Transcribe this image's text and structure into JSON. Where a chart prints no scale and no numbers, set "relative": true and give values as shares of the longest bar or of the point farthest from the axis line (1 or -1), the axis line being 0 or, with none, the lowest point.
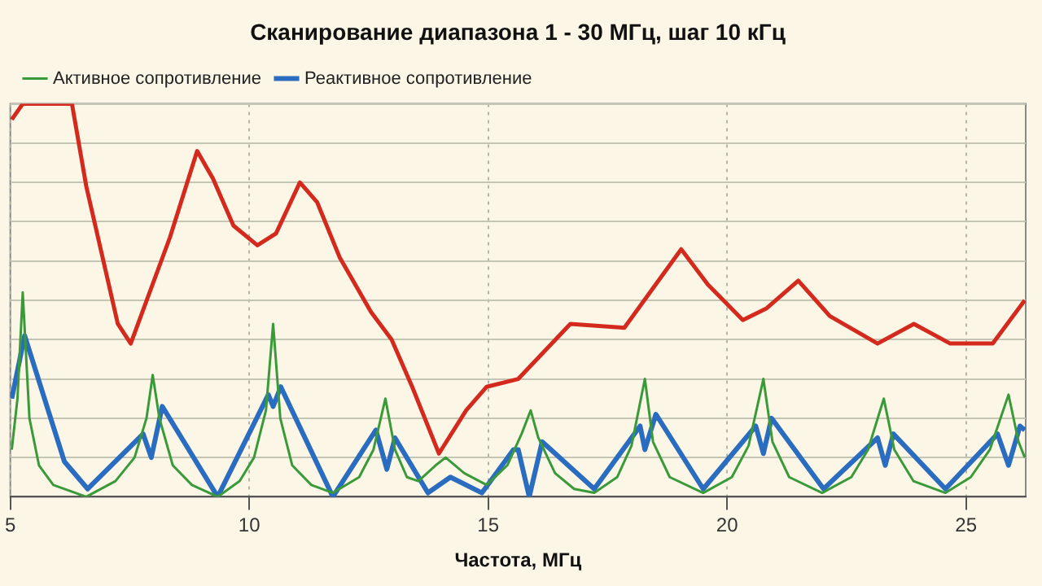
{
  "chart_data": {
    "type": "line",
    "title": "Сканирование диапазона 1 - 30 МГц, шаг 10 кГц",
    "xlabel": "Частота, МГц",
    "relative": true,
    "xlim": [
      5,
      26.25
    ],
    "xticks": [
      5,
      10,
      15,
      20,
      25
    ],
    "grid": true,
    "legend": "top left",
    "marker": "none",
    "line_style": "solid",
    "series": [
      {
        "color": "#d42a1e",
        "x": [
          5.03,
          5.26,
          6.29,
          6.59,
          7.25,
          7.52,
          8.34,
          8.91,
          9.24,
          9.67,
          10.17,
          10.56,
          11.06,
          11.42,
          11.89,
          12.55,
          12.98,
          13.41,
          13.97,
          14.54,
          14.97,
          15.63,
          16.72,
          17.85,
          19.04,
          19.6,
          20.33,
          20.83,
          21.49,
          22.15,
          22.58,
          23.15,
          23.91,
          24.67,
          25.56,
          26.23
        ],
        "values": [
          0.96,
          1,
          1,
          0.79,
          0.44,
          0.39,
          0.66,
          0.88,
          0.81,
          0.69,
          0.64,
          0.67,
          0.8,
          0.75,
          0.61,
          0.47,
          0.4,
          0.28,
          0.11,
          0.22,
          0.28,
          0.3,
          0.44,
          0.43,
          0.63,
          0.54,
          0.45,
          0.48,
          0.55,
          0.46,
          0.43,
          0.39,
          0.44,
          0.39,
          0.39,
          0.5
        ]
      },
      {
        "name": "Активное сопротивление",
        "color": "#3a9a3a",
        "x": [
          5.03,
          5.15,
          5.26,
          5.4,
          5.6,
          5.9,
          6.59,
          7.2,
          7.6,
          7.85,
          7.98,
          8.12,
          8.4,
          8.8,
          9.34,
          9.8,
          10.1,
          10.35,
          10.5,
          10.65,
          10.9,
          11.3,
          11.75,
          12.3,
          12.6,
          12.85,
          13.05,
          13.3,
          13.54,
          13.9,
          14.11,
          14.5,
          14.97,
          15.4,
          15.7,
          15.89,
          16.05,
          16.4,
          16.8,
          17.22,
          17.7,
          18,
          18.28,
          18.45,
          18.8,
          19.5,
          20.1,
          20.45,
          20.76,
          20.95,
          21.3,
          21.99,
          22.6,
          22.95,
          23.28,
          23.5,
          23.9,
          24.57,
          25.1,
          25.5,
          25.89,
          26.1,
          26.23
        ],
        "values": [
          0.12,
          0.25,
          0.52,
          0.2,
          0.08,
          0.03,
          0,
          0.04,
          0.1,
          0.2,
          0.31,
          0.2,
          0.08,
          0.03,
          0,
          0.04,
          0.1,
          0.22,
          0.44,
          0.2,
          0.08,
          0.03,
          0.01,
          0.05,
          0.12,
          0.25,
          0.12,
          0.05,
          0.04,
          0.08,
          0.1,
          0.06,
          0.03,
          0.08,
          0.16,
          0.22,
          0.15,
          0.06,
          0.02,
          0.01,
          0.05,
          0.13,
          0.3,
          0.14,
          0.05,
          0.01,
          0.05,
          0.13,
          0.3,
          0.14,
          0.05,
          0.01,
          0.05,
          0.12,
          0.25,
          0.12,
          0.04,
          0.01,
          0.05,
          0.12,
          0.26,
          0.14,
          0.1
        ]
      },
      {
        "name": "Реактивное сопротивление",
        "color": "#2a6cc0",
        "x": [
          5.03,
          5.3,
          6.13,
          6.62,
          7.78,
          7.95,
          8.18,
          9.34,
          10.4,
          10.5,
          10.66,
          11.75,
          12.65,
          12.88,
          13.05,
          13.74,
          14.21,
          14.87,
          15.53,
          15.63,
          15.86,
          16.13,
          17.22,
          18.18,
          18.28,
          18.51,
          19.5,
          20.6,
          20.76,
          20.93,
          22.02,
          23.15,
          23.31,
          23.48,
          24.57,
          25.66,
          25.89,
          26.13,
          26.23
        ],
        "values": [
          0.25,
          0.41,
          0.09,
          0.02,
          0.16,
          0.1,
          0.23,
          0,
          0.26,
          0.23,
          0.28,
          0,
          0.17,
          0.07,
          0.15,
          0.01,
          0.05,
          0.01,
          0.12,
          0.12,
          0,
          0.14,
          0.02,
          0.18,
          0.12,
          0.21,
          0.02,
          0.18,
          0.11,
          0.2,
          0.02,
          0.15,
          0.08,
          0.16,
          0.02,
          0.16,
          0.08,
          0.18,
          0.17
        ]
      }
    ]
  }
}
